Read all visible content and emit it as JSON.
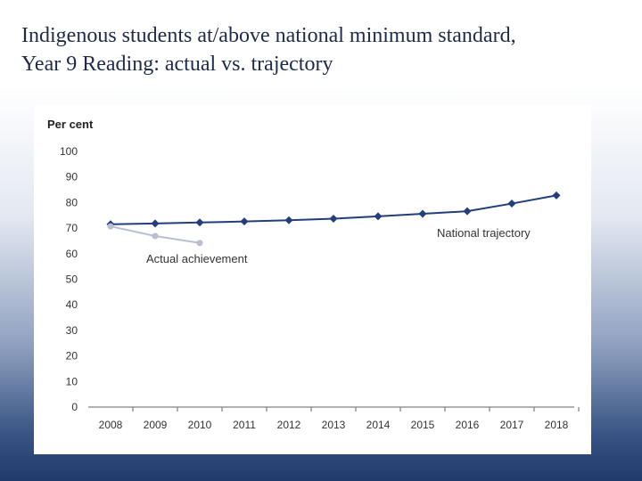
{
  "slide": {
    "title_line1": "Indigenous students at/above national minimum standard,",
    "title_line2": "Year 9 Reading: actual vs. trajectory"
  },
  "chart_data": {
    "type": "line",
    "ylabel": "Per cent",
    "xlabel": "",
    "ylim": [
      0,
      100
    ],
    "yticks": [
      0,
      10,
      20,
      30,
      40,
      50,
      60,
      70,
      80,
      90,
      100
    ],
    "categories": [
      "2008",
      "2009",
      "2010",
      "2011",
      "2012",
      "2013",
      "2014",
      "2015",
      "2016",
      "2017",
      "2018"
    ],
    "grid": false,
    "legend": "inline labels",
    "series": [
      {
        "name": "National trajectory",
        "color": "#213f7a",
        "marker": "diamond",
        "values": [
          71.5,
          71.8,
          72.2,
          72.6,
          73.1,
          73.7,
          74.6,
          75.6,
          76.6,
          79.6,
          82.8
        ]
      },
      {
        "name": "Actual achievement",
        "color": "#b9bfd1",
        "marker": "circle",
        "values": [
          70.7,
          66.9,
          64.2,
          null,
          null,
          null,
          null,
          null,
          null,
          null,
          null
        ]
      }
    ]
  }
}
